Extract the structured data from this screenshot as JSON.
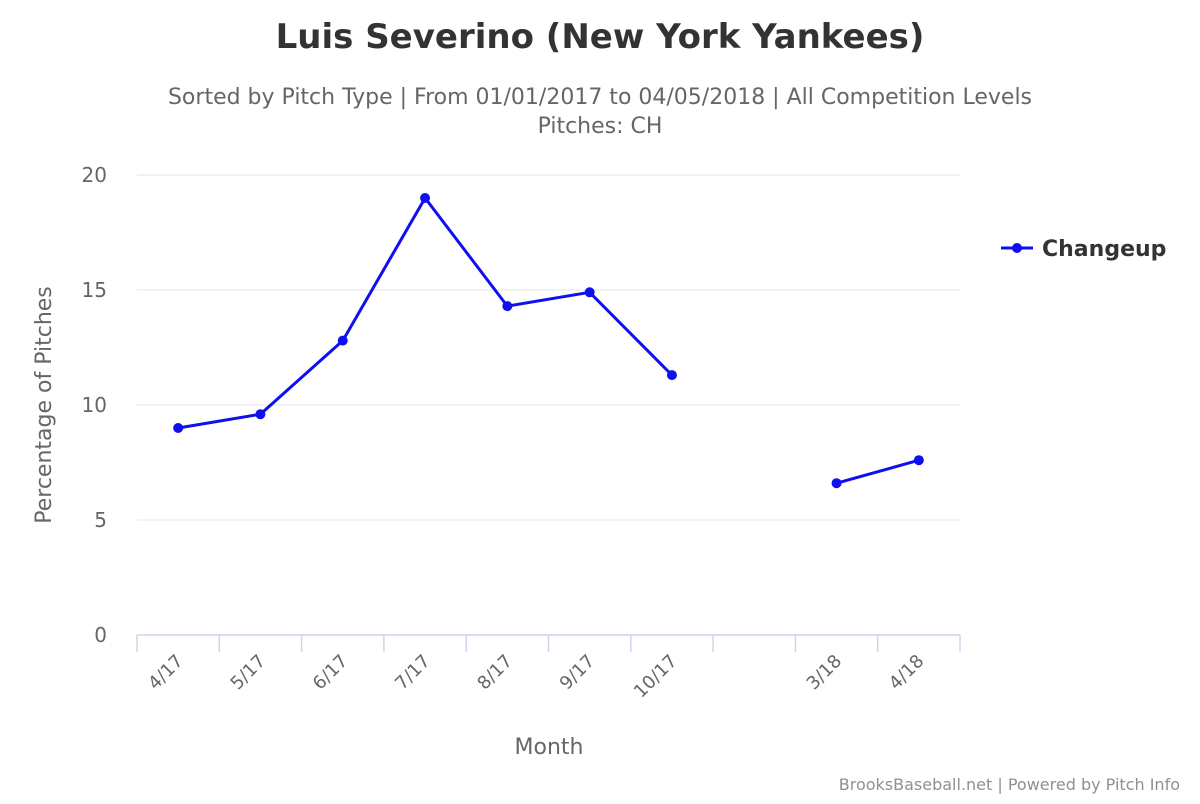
{
  "chart_data": {
    "type": "line",
    "title": "Luis Severino (New York Yankees)",
    "subtitle_lines": [
      "Sorted by Pitch Type | From 01/01/2017 to 04/05/2018 | All Competition Levels",
      "Pitches: CH"
    ],
    "xlabel": "Month",
    "ylabel": "Percentage of Pitches",
    "categories": [
      "4/17",
      "5/17",
      "6/17",
      "7/17",
      "8/17",
      "9/17",
      "10/17",
      "",
      "3/18",
      "4/18"
    ],
    "ylim": [
      0,
      20
    ],
    "yticks": [
      0,
      5,
      10,
      15,
      20
    ],
    "grid": true,
    "legend_position": "right",
    "series": [
      {
        "name": "Changeup",
        "color": "#0f0fef",
        "values": [
          9.0,
          9.6,
          12.8,
          19.0,
          14.3,
          14.9,
          11.3,
          null,
          6.6,
          7.6
        ]
      }
    ]
  },
  "credits": "BrooksBaseball.net | Powered by Pitch Info"
}
